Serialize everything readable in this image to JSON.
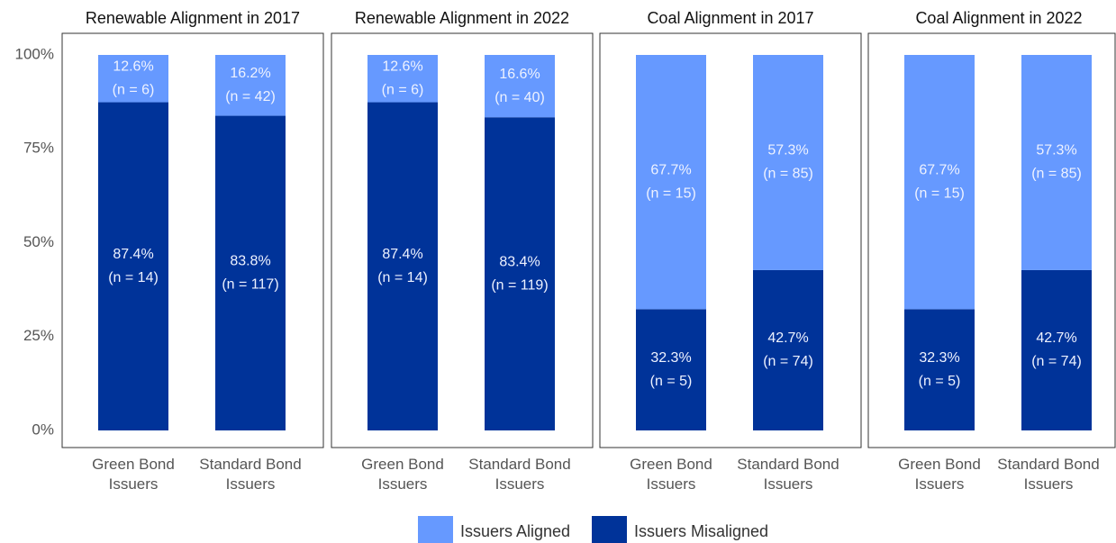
{
  "chart_data": {
    "type": "bar",
    "stacked": true,
    "ylim": [
      0,
      100
    ],
    "yticks": [
      {
        "value": 0,
        "label": "0%"
      },
      {
        "value": 25,
        "label": "25%"
      },
      {
        "value": 50,
        "label": "50%"
      },
      {
        "value": 75,
        "label": "75%"
      },
      {
        "value": 100,
        "label": "100%"
      }
    ],
    "legend": "bottom",
    "legend_items": [
      {
        "name": "Issuers Aligned",
        "color": "#6699ff"
      },
      {
        "name": "Issuers Misaligned",
        "color": "#003399"
      }
    ],
    "panels": [
      {
        "title": "Renewable Alignment in 2017",
        "categories": [
          "Green Bond Issuers",
          "Standard Bond Issuers"
        ],
        "series": [
          {
            "values": [
              12.6,
              16.2
            ],
            "value_labels": [
              "12.6%",
              "16.2%"
            ],
            "count_labels": [
              "(n = 6)",
              "(n = 42)"
            ]
          },
          {
            "values": [
              87.4,
              83.8
            ],
            "value_labels": [
              "87.4%",
              "83.8%"
            ],
            "count_labels": [
              "(n = 14)",
              "(n = 117)"
            ]
          }
        ]
      },
      {
        "title": "Renewable Alignment in 2022",
        "categories": [
          "Green Bond Issuers",
          "Standard Bond Issuers"
        ],
        "series": [
          {
            "values": [
              12.6,
              16.6
            ],
            "value_labels": [
              "12.6%",
              "16.6%"
            ],
            "count_labels": [
              "(n = 6)",
              "(n = 40)"
            ]
          },
          {
            "values": [
              87.4,
              83.4
            ],
            "value_labels": [
              "87.4%",
              "83.4%"
            ],
            "count_labels": [
              "(n = 14)",
              "(n = 119)"
            ]
          }
        ]
      },
      {
        "title": "Coal Alignment in 2017",
        "categories": [
          "Green Bond Issuers",
          "Standard Bond Issuers"
        ],
        "series": [
          {
            "values": [
              67.7,
              57.3
            ],
            "value_labels": [
              "67.7%",
              "57.3%"
            ],
            "count_labels": [
              "(n = 15)",
              "(n = 85)"
            ]
          },
          {
            "values": [
              32.3,
              42.7
            ],
            "value_labels": [
              "32.3%",
              "42.7%"
            ],
            "count_labels": [
              "(n = 5)",
              "(n = 74)"
            ]
          }
        ]
      },
      {
        "title": "Coal Alignment in 2022",
        "categories": [
          "Green Bond Issuers",
          "Standard Bond Issuers"
        ],
        "series": [
          {
            "values": [
              67.7,
              57.3
            ],
            "value_labels": [
              "67.7%",
              "57.3%"
            ],
            "count_labels": [
              "(n = 15)",
              "(n = 85)"
            ]
          },
          {
            "values": [
              32.3,
              42.7
            ],
            "value_labels": [
              "32.3%",
              "42.7%"
            ],
            "count_labels": [
              "(n = 5)",
              "(n = 74)"
            ]
          }
        ]
      }
    ]
  }
}
